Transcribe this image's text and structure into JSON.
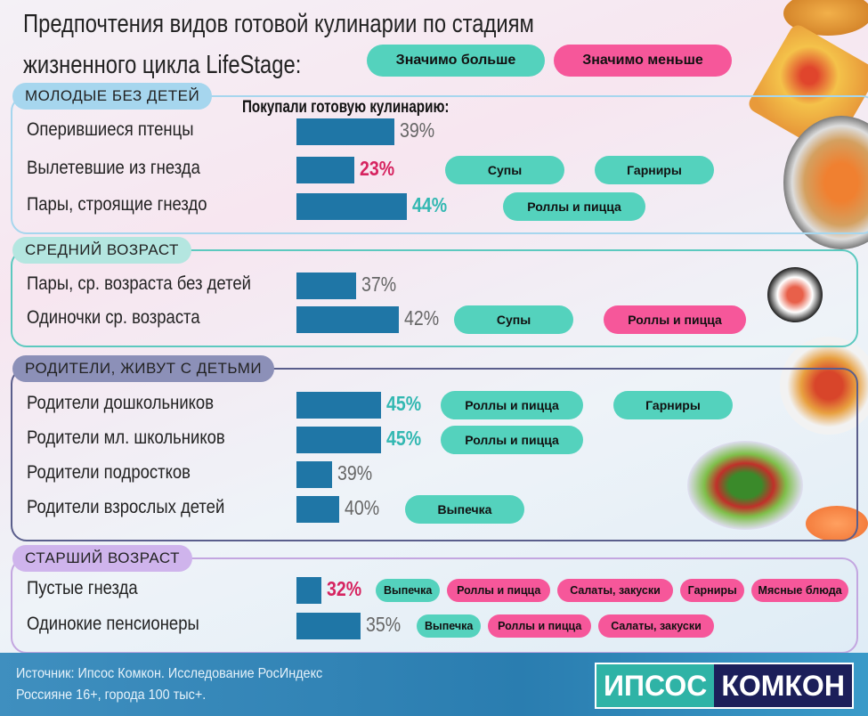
{
  "title_line1": "Предпочтения видов готовой кулинарии по стадиям",
  "title_line2": "жизненного цикла LifeStage:",
  "legend": {
    "more": "Значимо больше",
    "less": "Значимо меньше",
    "more_color": "#54d2bd",
    "less_color": "#f6579a"
  },
  "subtitle": "Покупали готовую кулинарию:",
  "chart_data": {
    "type": "bar",
    "title": "Предпочтения видов готовой кулинарии по стадиям жизненного цикла LifeStage",
    "unit": "%",
    "groups": [
      {
        "name": "МОЛОДЫЕ БЕЗ ДЕТЕЙ",
        "rows": [
          {
            "label": "Оперившиеся птенцы",
            "value": 39,
            "value_text": "39%",
            "significance": "none",
            "tags": []
          },
          {
            "label": "Вылетевшие из гнезда",
            "value": 23,
            "value_text": "23%",
            "significance": "lower",
            "tags": [
              {
                "text": "Супы",
                "type": "more"
              },
              {
                "text": "Гарниры",
                "type": "more"
              }
            ]
          },
          {
            "label": "Пары, строящие гнездо",
            "value": 44,
            "value_text": "44%",
            "significance": "higher",
            "tags": [
              {
                "text": "Роллы и пицца",
                "type": "more"
              }
            ]
          }
        ]
      },
      {
        "name": "СРЕДНИЙ ВОЗРАСТ",
        "rows": [
          {
            "label": "Пары, ср. возраста без детей",
            "value": 37,
            "value_text": "37%",
            "significance": "none",
            "tags": []
          },
          {
            "label": "Одиночки ср. возраста",
            "value": 42,
            "value_text": "42%",
            "significance": "none",
            "tags": [
              {
                "text": "Супы",
                "type": "more"
              },
              {
                "text": "Роллы и пицца",
                "type": "less"
              }
            ]
          }
        ]
      },
      {
        "name": "РОДИТЕЛИ, ЖИВУТ С ДЕТЬМИ",
        "rows": [
          {
            "label": "Родители дошкольников",
            "value": 45,
            "value_text": "45%",
            "significance": "higher",
            "tags": [
              {
                "text": "Роллы и пицца",
                "type": "more"
              },
              {
                "text": "Гарниры",
                "type": "more"
              }
            ]
          },
          {
            "label": "Родители мл. школьников",
            "value": 45,
            "value_text": "45%",
            "significance": "higher",
            "tags": [
              {
                "text": "Роллы и пицца",
                "type": "more"
              }
            ]
          },
          {
            "label": "Родители подростков",
            "value": 39,
            "value_text": "39%",
            "significance": "none",
            "tags": []
          },
          {
            "label": "Родители взрослых детей",
            "value": 40,
            "value_text": "40%",
            "significance": "none",
            "tags": [
              {
                "text": "Выпечка",
                "type": "more"
              }
            ]
          }
        ]
      },
      {
        "name": "СТАРШИЙ ВОЗРАСТ",
        "rows": [
          {
            "label": "Пустые гнезда",
            "value": 32,
            "value_text": "32%",
            "significance": "lower",
            "tags": [
              {
                "text": "Выпечка",
                "type": "more"
              },
              {
                "text": "Роллы и пицца",
                "type": "less"
              },
              {
                "text": "Салаты, закуски",
                "type": "less"
              },
              {
                "text": "Гарниры",
                "type": "less"
              },
              {
                "text": "Мясные блюда",
                "type": "less"
              }
            ]
          },
          {
            "label": "Одинокие пенсионеры",
            "value": 35,
            "value_text": "35%",
            "significance": "none",
            "tags": [
              {
                "text": "Выпечка",
                "type": "more"
              },
              {
                "text": "Роллы и пицца",
                "type": "less"
              },
              {
                "text": "Салаты, закуски",
                "type": "less"
              }
            ]
          }
        ]
      }
    ]
  },
  "footer": {
    "source_line1": "Источник: Ипсос Комкон. Исследование РосИндекс",
    "source_line2": "Россияне 16+, города 100 тыс+.",
    "logo_left": "ИПСОС",
    "logo_right": "КОМКОН"
  }
}
